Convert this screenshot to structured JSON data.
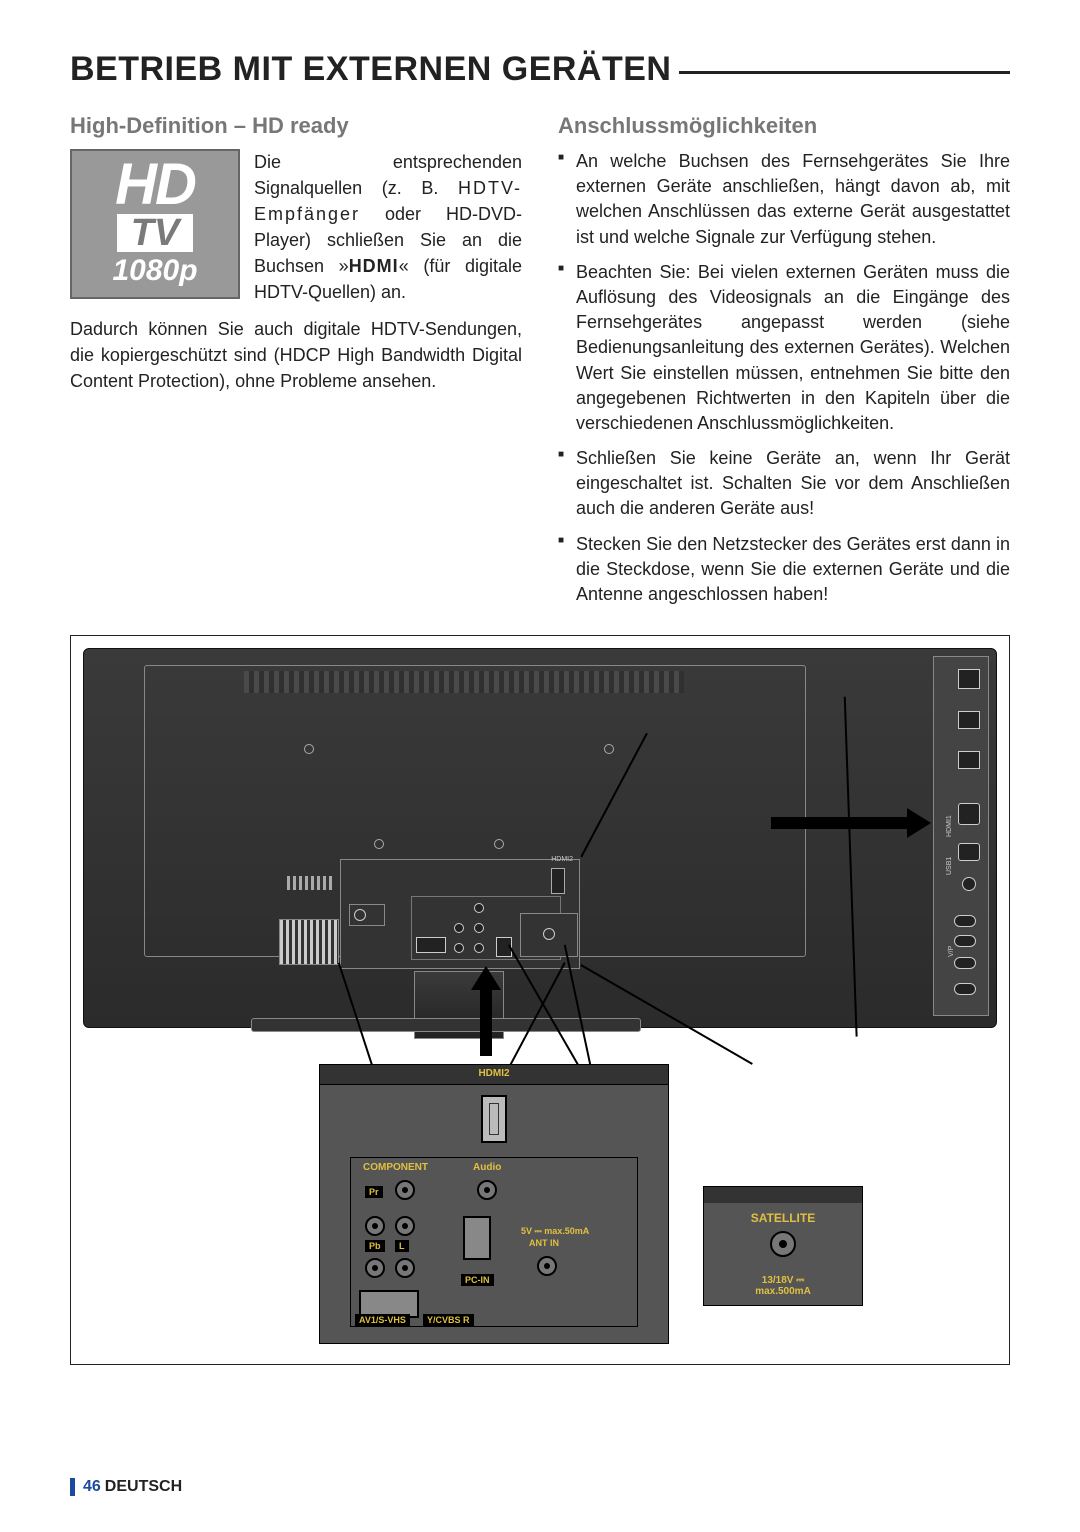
{
  "page": {
    "title": "BETRIEB MIT EXTERNEN GERÄTEN",
    "footer_num": "46",
    "footer_lang": "DEUTSCH"
  },
  "left": {
    "heading": "High-Definition – HD ready",
    "badge": {
      "hd": "HD",
      "tv": "TV",
      "res": "1080p"
    },
    "intro_1": "Die entsprechenden Signalquellen (z. B. ",
    "intro_hdtv": "HDTV-Empfänger",
    "intro_2": " oder HD-DVD-Player) schließen Sie an die Buchsen »",
    "intro_hdmi": "HDMI",
    "intro_3": "« (für digitale HDTV-Quellen) an.",
    "para2": "Dadurch können Sie auch digitale HDTV-Sen­dungen, die kopiergeschützt sind (HDCP High Bandwidth Digital Content Protection), ohne Pro­bleme ansehen."
  },
  "right": {
    "heading": "Anschlussmöglichkeiten",
    "b1": "An welche Buchsen des Fernsehgerätes Sie Ihre externen Geräte anschließen, hängt davon ab, mit welchen Anschlüssen das externe Gerät ausgestattet ist und welche Signale zur Verfügung stehen.",
    "b2": "Beachten Sie: Bei vielen externen Geräten muss die Auflösung des Videosignals an die Eingänge des Fernsehgerätes angepasst werden (siehe Bedienungsanleitung des externen Gerätes). Welchen Wert Sie ein­stellen müssen, entnehmen Sie bitte den an­gegebenen Richtwerten in den Kapiteln über die verschiedenen Anschlussmöglichkeiten.",
    "b3": "Schließen Sie keine Geräte an, wenn Ihr Ge­rät eingeschaltet ist. Schalten Sie vor dem Anschließen auch die anderen Geräte aus!",
    "b4": "Stecken Sie den Netzstecker des Gerätes erst dann in die Steckdose, wenn Sie die externen Geräte und die Antenne an­geschlossen haben!"
  },
  "diagram": {
    "hdmi2": "HDMI2",
    "component": "COMPONENT",
    "audio": "Audio",
    "pr": "Pr",
    "pb": "Pb",
    "l": "L",
    "r": "R",
    "av": "AV1/S-VHS",
    "ycvbs": "Y/CVBS R",
    "pcin": "PC-IN",
    "antin": "ANT IN",
    "ant5v": "5V ⎓ max.50mA",
    "satellite": "SATELLITE",
    "sat_v1": "13/18V ⎓",
    "sat_v2": "max.500mA",
    "side_hdmi1": "HDMI1",
    "side_usb1": "USB1",
    "side_vp": "V/P"
  },
  "styling": {
    "page_bg": "#ffffff",
    "text_color": "#222222",
    "subhead_color": "#777777",
    "accent_blue": "#1b4aa0",
    "diagram_bg_dark": "#333333",
    "diagram_bg_mid": "#555555",
    "diagram_label_color": "#e0c040",
    "title_fontsize": 34,
    "subhead_fontsize": 22,
    "body_fontsize": 18
  }
}
